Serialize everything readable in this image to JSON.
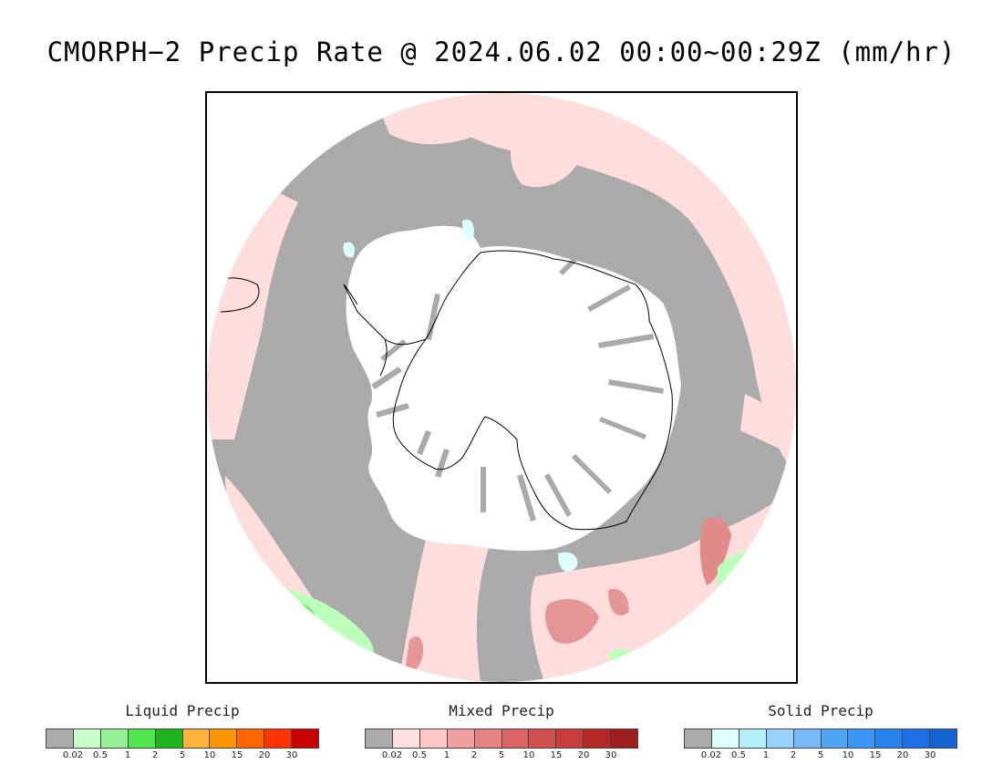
{
  "title": "CMORPH−2 Precip Rate @ 2024.06.02 00:00~00:29Z (mm/hr)",
  "colors": {
    "no_data_gray": "#aaaaaa",
    "continent_white": "#ffffff",
    "mixed_light": "#ffdddd",
    "mixed_mid": "#e88080",
    "liquid_light": "#bbffbb",
    "liquid_mid": "#55ee55",
    "solid_light": "#ddffff",
    "coastline": "#000000"
  },
  "legends": [
    {
      "id": "liquid",
      "title": "Liquid Precip",
      "colors": [
        "#aaaaaa",
        "#c8ffc8",
        "#96f096",
        "#50e650",
        "#1eb41e",
        "#ffb43c",
        "#ff9600",
        "#ff6400",
        "#ff3200",
        "#c80000"
      ],
      "ticks": [
        "0.02",
        "0.5",
        "1",
        "2",
        "5",
        "10",
        "15",
        "20",
        "30"
      ]
    },
    {
      "id": "mixed",
      "title": "Mixed Precip",
      "colors": [
        "#aaaaaa",
        "#ffe0e0",
        "#ffc8c8",
        "#f0a0a0",
        "#e68282",
        "#dc6464",
        "#d25050",
        "#c83c3c",
        "#b42828",
        "#a01e1e"
      ],
      "ticks": [
        "0.02",
        "0.5",
        "1",
        "2",
        "5",
        "10",
        "15",
        "20",
        "30"
      ]
    },
    {
      "id": "solid",
      "title": "Solid Precip",
      "colors": [
        "#aaaaaa",
        "#e0ffff",
        "#b4f0fa",
        "#96d2fa",
        "#78b9fa",
        "#50a5f5",
        "#3c96f5",
        "#2882f0",
        "#1e6ee6",
        "#1464d2"
      ],
      "ticks": [
        "0.02",
        "0.5",
        "1",
        "2",
        "5",
        "10",
        "15",
        "20",
        "30"
      ]
    }
  ]
}
